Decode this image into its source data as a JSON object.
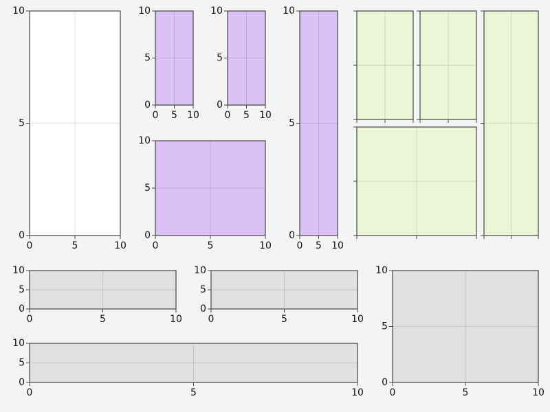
{
  "chart_data": [
    {
      "type": "axes",
      "background": "#ffffff",
      "tick_labels": true,
      "grid": true,
      "xlim": [
        0,
        10
      ],
      "ylim": [
        0,
        10
      ],
      "xticks": [
        0,
        5,
        10
      ],
      "yticks": [
        0,
        5,
        10
      ]
    },
    {
      "type": "axes",
      "background": "#dcc1f6",
      "tick_labels": true,
      "grid": true,
      "xlim": [
        0,
        10
      ],
      "ylim": [
        0,
        10
      ],
      "xticks": [
        0,
        5,
        10
      ],
      "yticks": [
        0,
        5,
        10
      ]
    },
    {
      "type": "axes",
      "background": "#dcc1f6",
      "tick_labels": true,
      "grid": true,
      "xlim": [
        0,
        10
      ],
      "ylim": [
        0,
        10
      ],
      "xticks": [
        0,
        5,
        10
      ],
      "yticks": [
        0,
        5,
        10
      ]
    },
    {
      "type": "axes",
      "background": "#dcc1f6",
      "tick_labels": true,
      "grid": true,
      "xlim": [
        0,
        10
      ],
      "ylim": [
        0,
        10
      ],
      "xticks": [
        0,
        5,
        10
      ],
      "yticks": [
        0,
        5,
        10
      ]
    },
    {
      "type": "axes",
      "background": "#dcc1f6",
      "tick_labels": true,
      "grid": true,
      "xlim": [
        0,
        10
      ],
      "ylim": [
        0,
        10
      ],
      "xticks": [
        0,
        5,
        10
      ],
      "yticks": [
        0,
        5,
        10
      ]
    },
    {
      "type": "axes",
      "background": "#ebf6d6",
      "tick_labels": false,
      "grid": true,
      "xlim": [
        0,
        10
      ],
      "ylim": [
        0,
        10
      ],
      "xticks": [
        0,
        5,
        10
      ],
      "yticks": [
        0,
        5,
        10
      ]
    },
    {
      "type": "axes",
      "background": "#ebf6d6",
      "tick_labels": false,
      "grid": true,
      "xlim": [
        0,
        10
      ],
      "ylim": [
        0,
        10
      ],
      "xticks": [
        0,
        5,
        10
      ],
      "yticks": [
        0,
        5,
        10
      ]
    },
    {
      "type": "axes",
      "background": "#ebf6d6",
      "tick_labels": false,
      "grid": true,
      "xlim": [
        0,
        10
      ],
      "ylim": [
        0,
        10
      ],
      "xticks": [
        0,
        5,
        10
      ],
      "yticks": [
        0,
        5,
        10
      ]
    },
    {
      "type": "axes",
      "background": "#ebf6d6",
      "tick_labels": false,
      "grid": true,
      "xlim": [
        0,
        10
      ],
      "ylim": [
        0,
        10
      ],
      "xticks": [
        0,
        5,
        10
      ],
      "yticks": [
        0,
        5,
        10
      ]
    },
    {
      "type": "axes",
      "background": "#e0e0e2",
      "tick_labels": true,
      "grid": true,
      "xlim": [
        0,
        10
      ],
      "ylim": [
        0,
        10
      ],
      "xticks": [
        0,
        5,
        10
      ],
      "yticks": [
        0,
        5,
        10
      ]
    },
    {
      "type": "axes",
      "background": "#e0e0e2",
      "tick_labels": true,
      "grid": true,
      "xlim": [
        0,
        10
      ],
      "ylim": [
        0,
        10
      ],
      "xticks": [
        0,
        5,
        10
      ],
      "yticks": [
        0,
        5,
        10
      ]
    },
    {
      "type": "axes",
      "background": "#e0e0e2",
      "tick_labels": true,
      "grid": true,
      "xlim": [
        0,
        10
      ],
      "ylim": [
        0,
        10
      ],
      "xticks": [
        0,
        5,
        10
      ],
      "yticks": [
        0,
        5,
        10
      ]
    },
    {
      "type": "axes",
      "background": "#e0e0e2",
      "tick_labels": true,
      "grid": true,
      "xlim": [
        0,
        10
      ],
      "ylim": [
        0,
        10
      ],
      "xticks": [
        0,
        5,
        10
      ],
      "yticks": [
        0,
        5,
        10
      ]
    }
  ]
}
